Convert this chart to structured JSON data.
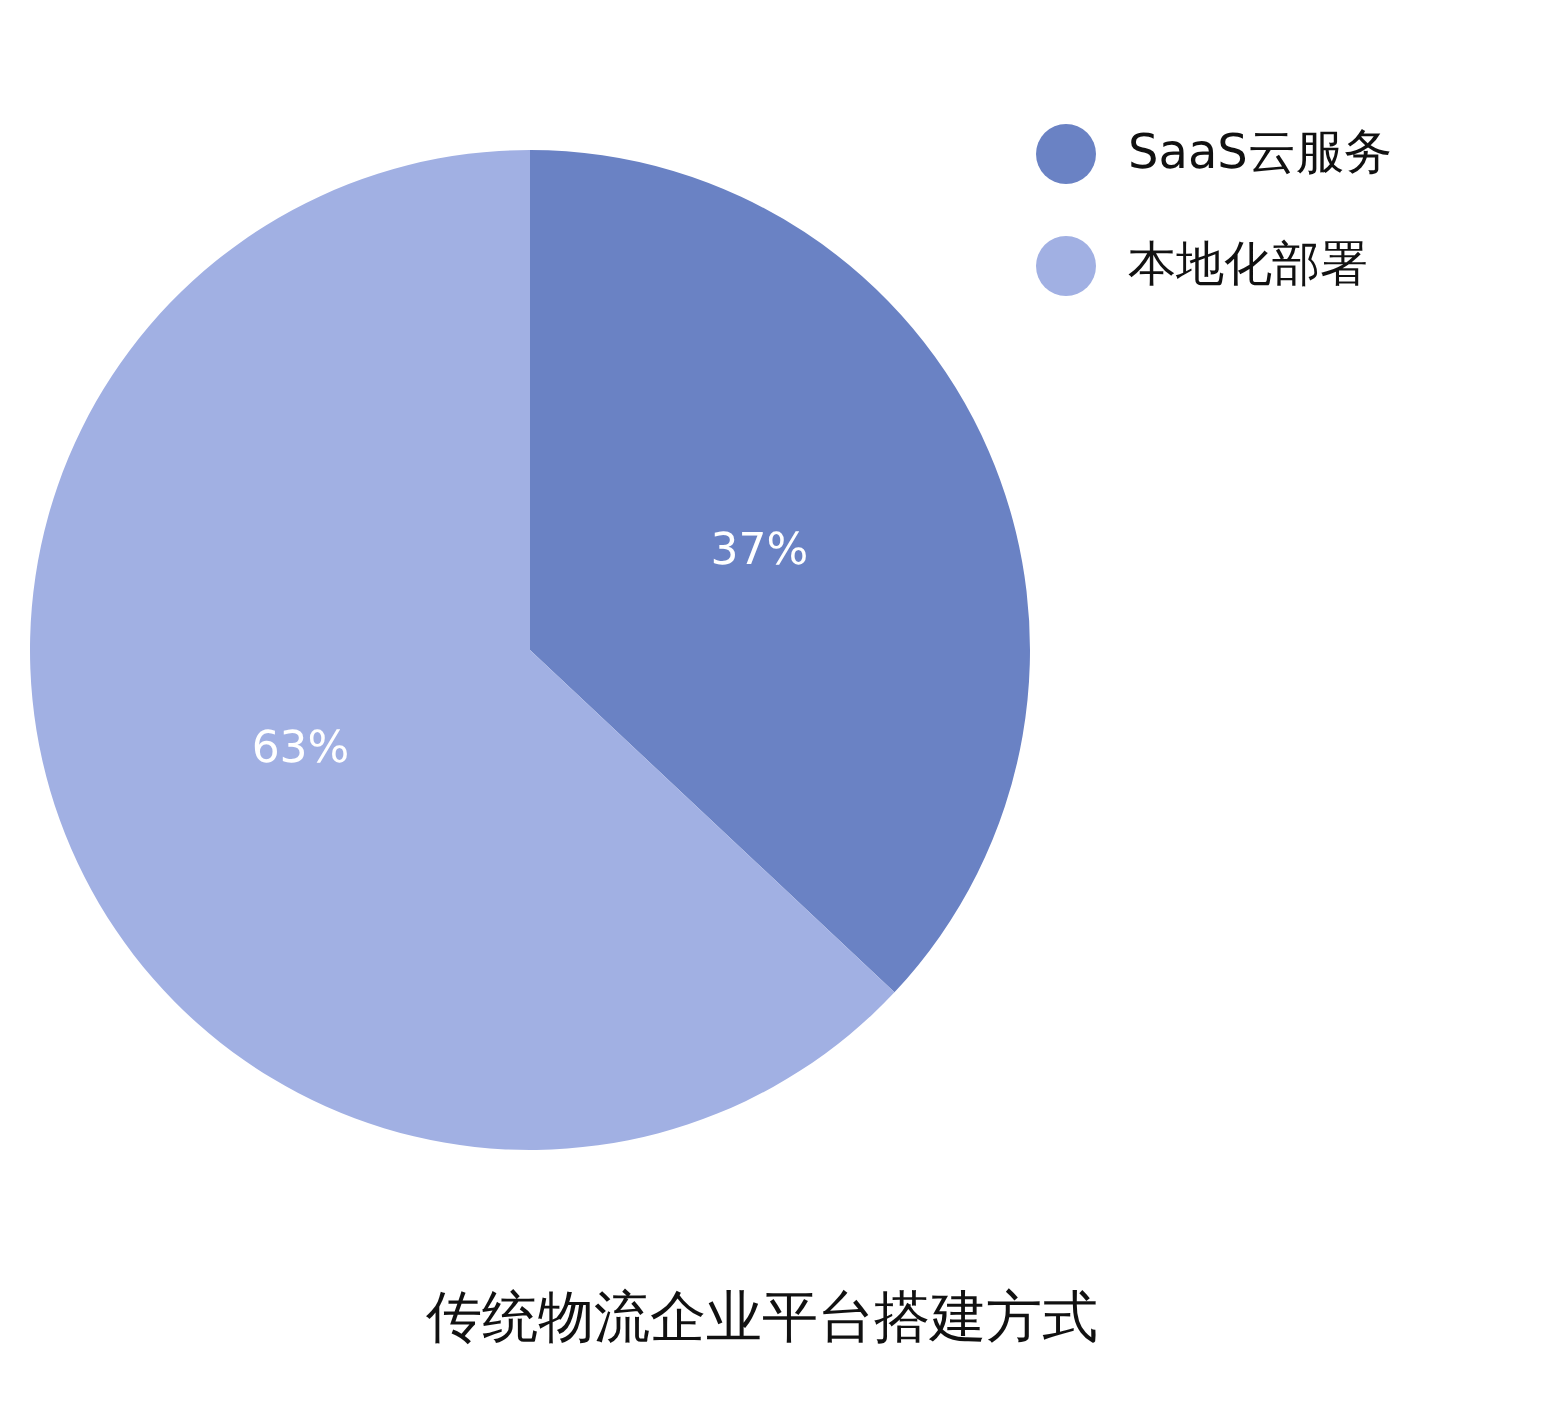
{
  "chart_data": {
    "type": "pie",
    "title": "传统物流企业平台搭建方式",
    "categories": [
      "SaaS云服务",
      "本地化部署"
    ],
    "values": [
      37,
      63
    ],
    "colors": [
      "#6a82c4",
      "#a1b0e3"
    ],
    "value_labels": [
      "37%",
      "63%"
    ],
    "legend": "top right"
  }
}
